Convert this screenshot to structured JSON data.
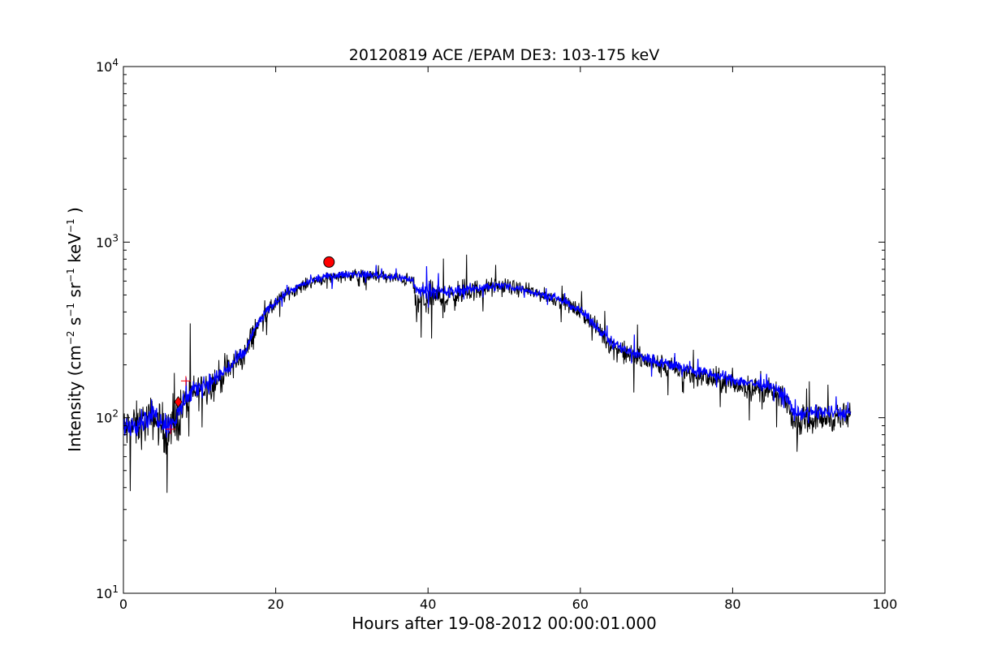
{
  "chart_data": {
    "type": "line",
    "title": "20120819 ACE /EPAM DE3: 103-175 keV",
    "xlabel": "Hours after 19-08-2012 00:00:01.000",
    "ylabel": {
      "lead": "Intensity (cm",
      "p1": "−2",
      "t1": " s",
      "p2": "−1",
      "t2": " sr",
      "p3": "−1",
      "t3": " keV",
      "p4": "−1",
      "tail": " )"
    },
    "xlim": [
      0,
      100
    ],
    "ylim": [
      10,
      10000
    ],
    "yscale": "log",
    "grid": false,
    "x_ticks": [
      0,
      20,
      40,
      60,
      80,
      100
    ],
    "x_tick_labels": [
      "0",
      "20",
      "40",
      "60",
      "80",
      "100"
    ],
    "y_ticks": [
      10,
      100,
      1000,
      10000
    ],
    "y_tick_labels": [
      {
        "base": "10",
        "exp": "1"
      },
      {
        "base": "10",
        "exp": "2"
      },
      {
        "base": "10",
        "exp": "3"
      },
      {
        "base": "10",
        "exp": "4"
      }
    ],
    "series": [
      {
        "color": "#000000",
        "x": [
          0,
          2,
          4,
          6,
          7,
          8,
          10,
          12,
          14,
          16,
          17.5,
          19,
          21,
          23,
          25,
          27,
          30,
          33,
          36,
          38,
          38.5,
          40,
          42,
          44,
          46,
          48,
          50,
          52,
          55,
          58,
          60,
          62,
          64,
          66,
          70,
          75,
          80,
          85,
          87,
          88,
          92,
          95.5
        ],
        "y": [
          85,
          90,
          100,
          80,
          95,
          120,
          145,
          160,
          190,
          230,
          330,
          400,
          490,
          550,
          600,
          630,
          650,
          640,
          620,
          600,
          420,
          500,
          470,
          510,
          530,
          550,
          560,
          540,
          500,
          450,
          400,
          330,
          260,
          230,
          200,
          175,
          155,
          140,
          125,
          95,
          100,
          100
        ],
        "jitter": [
          0.18,
          0.2,
          0.18,
          0.22,
          0.22,
          0.18,
          0.15,
          0.15,
          0.13,
          0.12,
          0.1,
          0.07,
          0.06,
          0.05,
          0.05,
          0.05,
          0.05,
          0.05,
          0.05,
          0.06,
          0.16,
          0.14,
          0.14,
          0.12,
          0.09,
          0.08,
          0.07,
          0.06,
          0.06,
          0.06,
          0.07,
          0.08,
          0.09,
          0.1,
          0.1,
          0.1,
          0.1,
          0.1,
          0.1,
          0.12,
          0.12,
          0.12
        ]
      },
      {
        "color": "#0000ff",
        "x": [
          0,
          2,
          4,
          6,
          7,
          8,
          10,
          12,
          14,
          16,
          17.5,
          19,
          21,
          23,
          25,
          27,
          30,
          33,
          36,
          38,
          38.5,
          40,
          42,
          44,
          46,
          48,
          50,
          52,
          55,
          58,
          60,
          62,
          64,
          66,
          70,
          75,
          80,
          85,
          87,
          88,
          92,
          95.5
        ],
        "y": [
          90,
          95,
          105,
          90,
          100,
          125,
          150,
          165,
          195,
          235,
          335,
          410,
          500,
          560,
          610,
          640,
          660,
          650,
          630,
          610,
          520,
          540,
          510,
          530,
          545,
          560,
          565,
          545,
          505,
          455,
          405,
          335,
          270,
          240,
          210,
          185,
          165,
          150,
          135,
          105,
          108,
          105
        ],
        "jitter": [
          0.1,
          0.1,
          0.1,
          0.1,
          0.1,
          0.09,
          0.08,
          0.08,
          0.07,
          0.06,
          0.05,
          0.04,
          0.03,
          0.03,
          0.03,
          0.03,
          0.03,
          0.03,
          0.03,
          0.03,
          0.06,
          0.06,
          0.06,
          0.05,
          0.04,
          0.04,
          0.04,
          0.03,
          0.03,
          0.03,
          0.04,
          0.04,
          0.05,
          0.05,
          0.05,
          0.05,
          0.05,
          0.05,
          0.05,
          0.06,
          0.06,
          0.06
        ]
      }
    ],
    "markers": [
      {
        "shape": "circle",
        "x": 27,
        "y": 770,
        "color": "#ff0000"
      },
      {
        "shape": "diamond",
        "x": 7.2,
        "y": 123,
        "color": "#ff0000"
      },
      {
        "shape": "plus",
        "x": 6.2,
        "y": 86,
        "color": "#ff0000"
      },
      {
        "shape": "plus",
        "x": 8.2,
        "y": 162,
        "color": "#ff0000"
      }
    ]
  }
}
